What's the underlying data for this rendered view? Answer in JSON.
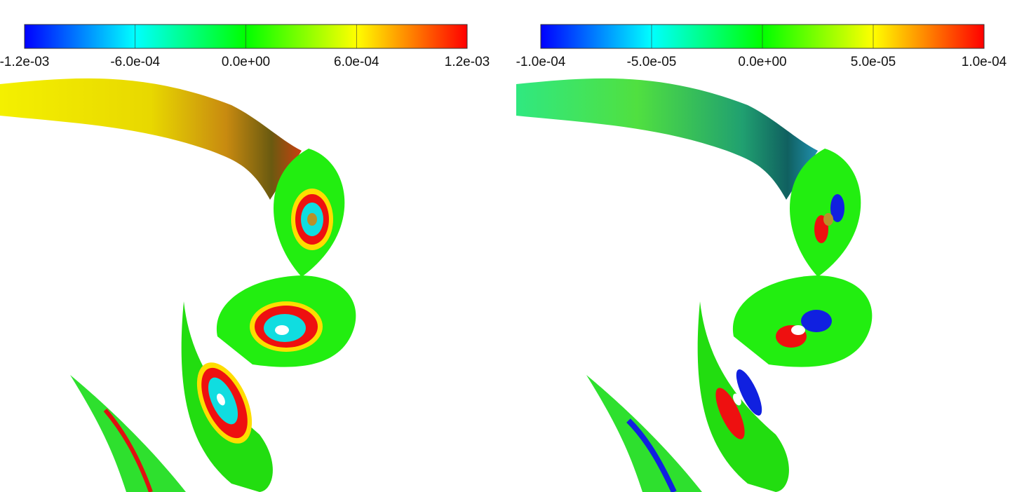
{
  "panels": [
    {
      "colorbar": {
        "clim": [
          -0.0012,
          0.0012
        ],
        "ticks": [
          {
            "value": -0.0012,
            "label": "-1.2e-03"
          },
          {
            "value": -0.0006,
            "label": "-6.0e-04"
          },
          {
            "value": 0,
            "label": "0.0e+00"
          },
          {
            "value": 0.0006,
            "label": "6.0e-04"
          },
          {
            "value": 0.0012,
            "label": "1.2e-03"
          }
        ]
      }
    },
    {
      "colorbar": {
        "clim": [
          -0.0001,
          0.0001
        ],
        "ticks": [
          {
            "value": -0.0001,
            "label": "-1.0e-04"
          },
          {
            "value": -5e-05,
            "label": "-5.0e-05"
          },
          {
            "value": 0,
            "label": "0.0e+00"
          },
          {
            "value": 5e-05,
            "label": "5.0e-05"
          },
          {
            "value": 0.0001,
            "label": "1.0e-04"
          }
        ]
      }
    }
  ]
}
